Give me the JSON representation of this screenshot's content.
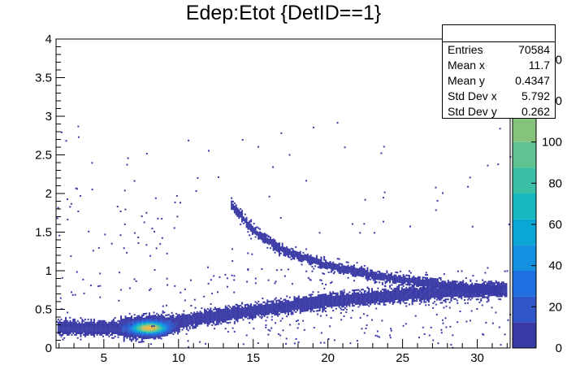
{
  "chart_data": {
    "type": "heatmap",
    "title": "Edep:Etot {DetID==1}",
    "xlabel": "",
    "ylabel": "",
    "xlim": [
      1.8,
      32.2
    ],
    "ylim": [
      0,
      4
    ],
    "x_ticks": [
      "5",
      "10",
      "15",
      "20",
      "25",
      "30"
    ],
    "y_ticks": [
      "0",
      "0.5",
      "1",
      "1.5",
      "2",
      "2.5",
      "3",
      "3.5",
      "4"
    ],
    "colorbar": {
      "range": [
        0,
        150
      ],
      "ticks": [
        "0",
        "20",
        "40",
        "60",
        "80",
        "100",
        "120",
        "140"
      ],
      "colors": [
        "#3a3aa6",
        "#2f56c8",
        "#1f6fe0",
        "#1490e0",
        "#0aa6d5",
        "#17b8c0",
        "#3bbfa6",
        "#5fc291",
        "#85c37c",
        "#aec266",
        "#d1bd52",
        "#e9b84a"
      ]
    },
    "structures": [
      {
        "name": "lower band",
        "x": [
          2,
          5,
          7,
          8,
          10,
          13,
          16,
          20,
          25,
          30,
          31.5
        ],
        "y": [
          0.25,
          0.25,
          0.25,
          0.27,
          0.33,
          0.42,
          0.5,
          0.6,
          0.68,
          0.73,
          0.75
        ]
      },
      {
        "name": "upper band",
        "x": [
          13.5,
          15,
          17,
          20,
          23,
          26,
          29,
          31.5
        ],
        "y": [
          1.85,
          1.5,
          1.25,
          1.05,
          0.93,
          0.85,
          0.78,
          0.72
        ]
      },
      {
        "name": "peak",
        "x": [
          8
        ],
        "y": [
          0.25
        ],
        "max_count": 140
      }
    ],
    "grid": false
  },
  "stats": {
    "header": "",
    "rows": [
      {
        "label": "Entries",
        "value": "70584"
      },
      {
        "label": "Mean x",
        "value": "11.7"
      },
      {
        "label": "Mean y",
        "value": "0.4347"
      },
      {
        "label": "Std Dev x",
        "value": "5.792"
      },
      {
        "label": "Std Dev y",
        "value": "0.262"
      }
    ]
  }
}
